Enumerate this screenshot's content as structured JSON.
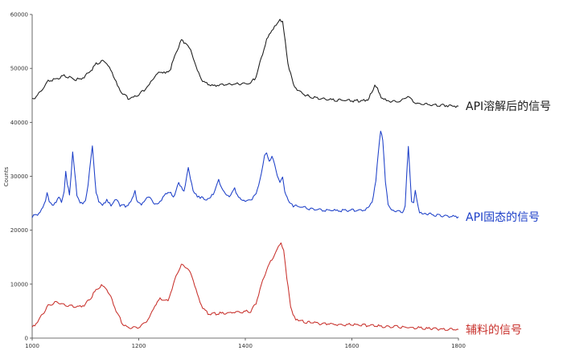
{
  "chart_data": {
    "type": "line",
    "xlabel": "",
    "ylabel": "Counts",
    "xlim": [
      1000,
      1800
    ],
    "ylim": [
      0,
      60000
    ],
    "grid": false,
    "x_ticks": [
      "1000",
      "1200",
      "1400",
      "1600",
      "1800"
    ],
    "y_ticks": [
      "0",
      "10000",
      "20000",
      "30000",
      "40000",
      "50000",
      "60000"
    ],
    "series": [
      {
        "name": "API溶解后的信号",
        "color": "#1a1a1a",
        "points": [
          [
            1000,
            44200
          ],
          [
            1010,
            45000
          ],
          [
            1020,
            46200
          ],
          [
            1030,
            47600
          ],
          [
            1040,
            48000
          ],
          [
            1050,
            48200
          ],
          [
            1060,
            48600
          ],
          [
            1070,
            48400
          ],
          [
            1080,
            48000
          ],
          [
            1090,
            48000
          ],
          [
            1100,
            48600
          ],
          [
            1110,
            49600
          ],
          [
            1120,
            50800
          ],
          [
            1130,
            51400
          ],
          [
            1140,
            51000
          ],
          [
            1150,
            49200
          ],
          [
            1160,
            46800
          ],
          [
            1170,
            45200
          ],
          [
            1180,
            44500
          ],
          [
            1190,
            44600
          ],
          [
            1200,
            45200
          ],
          [
            1210,
            46000
          ],
          [
            1220,
            47000
          ],
          [
            1230,
            48600
          ],
          [
            1240,
            49400
          ],
          [
            1250,
            49000
          ],
          [
            1260,
            50000
          ],
          [
            1270,
            53000
          ],
          [
            1280,
            55200
          ],
          [
            1290,
            54600
          ],
          [
            1300,
            52800
          ],
          [
            1310,
            49600
          ],
          [
            1320,
            47600
          ],
          [
            1330,
            47000
          ],
          [
            1340,
            46800
          ],
          [
            1350,
            46900
          ],
          [
            1360,
            47000
          ],
          [
            1370,
            47000
          ],
          [
            1380,
            47100
          ],
          [
            1390,
            47100
          ],
          [
            1400,
            47100
          ],
          [
            1410,
            47200
          ],
          [
            1420,
            48400
          ],
          [
            1430,
            52000
          ],
          [
            1440,
            55200
          ],
          [
            1450,
            57200
          ],
          [
            1460,
            58200
          ],
          [
            1465,
            59200
          ],
          [
            1470,
            58500
          ],
          [
            1475,
            55000
          ],
          [
            1480,
            51000
          ],
          [
            1490,
            47000
          ],
          [
            1500,
            45800
          ],
          [
            1510,
            45200
          ],
          [
            1520,
            44800
          ],
          [
            1540,
            44400
          ],
          [
            1560,
            44200
          ],
          [
            1580,
            44100
          ],
          [
            1600,
            44000
          ],
          [
            1620,
            44000
          ],
          [
            1630,
            44300
          ],
          [
            1637,
            45400
          ],
          [
            1643,
            47000
          ],
          [
            1648,
            46400
          ],
          [
            1655,
            44700
          ],
          [
            1665,
            44000
          ],
          [
            1680,
            43800
          ],
          [
            1690,
            43900
          ],
          [
            1700,
            44500
          ],
          [
            1705,
            44800
          ],
          [
            1710,
            44400
          ],
          [
            1720,
            43600
          ],
          [
            1740,
            43300
          ],
          [
            1760,
            43200
          ],
          [
            1780,
            43100
          ],
          [
            1800,
            43000
          ]
        ]
      },
      {
        "name": "API固态的信号",
        "color": "#1c3fc8",
        "points": [
          [
            1000,
            22500
          ],
          [
            1010,
            23000
          ],
          [
            1020,
            24200
          ],
          [
            1025,
            25500
          ],
          [
            1028,
            27200
          ],
          [
            1032,
            25500
          ],
          [
            1038,
            24400
          ],
          [
            1045,
            25200
          ],
          [
            1050,
            26000
          ],
          [
            1055,
            25300
          ],
          [
            1060,
            27300
          ],
          [
            1063,
            30800
          ],
          [
            1066,
            28400
          ],
          [
            1070,
            26700
          ],
          [
            1073,
            30300
          ],
          [
            1076,
            34600
          ],
          [
            1080,
            30500
          ],
          [
            1084,
            26500
          ],
          [
            1090,
            25300
          ],
          [
            1095,
            24800
          ],
          [
            1100,
            25500
          ],
          [
            1105,
            28500
          ],
          [
            1110,
            33000
          ],
          [
            1113,
            35500
          ],
          [
            1116,
            32000
          ],
          [
            1120,
            27000
          ],
          [
            1125,
            25200
          ],
          [
            1132,
            24800
          ],
          [
            1140,
            25500
          ],
          [
            1148,
            24700
          ],
          [
            1155,
            25400
          ],
          [
            1160,
            25800
          ],
          [
            1165,
            24600
          ],
          [
            1175,
            24500
          ],
          [
            1185,
            25000
          ],
          [
            1190,
            26500
          ],
          [
            1193,
            27400
          ],
          [
            1196,
            25400
          ],
          [
            1205,
            24700
          ],
          [
            1212,
            25400
          ],
          [
            1218,
            26200
          ],
          [
            1225,
            25400
          ],
          [
            1232,
            24800
          ],
          [
            1240,
            25300
          ],
          [
            1248,
            26500
          ],
          [
            1255,
            26800
          ],
          [
            1260,
            27000
          ],
          [
            1265,
            26200
          ],
          [
            1270,
            27300
          ],
          [
            1275,
            28800
          ],
          [
            1280,
            28100
          ],
          [
            1285,
            27000
          ],
          [
            1290,
            29800
          ],
          [
            1293,
            31800
          ],
          [
            1297,
            29600
          ],
          [
            1302,
            27200
          ],
          [
            1310,
            26300
          ],
          [
            1318,
            26000
          ],
          [
            1325,
            25700
          ],
          [
            1332,
            25800
          ],
          [
            1340,
            26700
          ],
          [
            1346,
            28300
          ],
          [
            1350,
            29300
          ],
          [
            1355,
            28200
          ],
          [
            1362,
            26700
          ],
          [
            1370,
            26300
          ],
          [
            1375,
            27000
          ],
          [
            1380,
            27700
          ],
          [
            1385,
            26600
          ],
          [
            1392,
            25600
          ],
          [
            1400,
            25500
          ],
          [
            1410,
            25600
          ],
          [
            1418,
            26400
          ],
          [
            1425,
            28300
          ],
          [
            1430,
            30500
          ],
          [
            1436,
            33600
          ],
          [
            1440,
            34200
          ],
          [
            1445,
            32800
          ],
          [
            1450,
            33600
          ],
          [
            1455,
            32400
          ],
          [
            1460,
            30100
          ],
          [
            1465,
            28800
          ],
          [
            1470,
            30000
          ],
          [
            1474,
            27200
          ],
          [
            1478,
            26000
          ],
          [
            1483,
            25000
          ],
          [
            1490,
            24500
          ],
          [
            1500,
            24400
          ],
          [
            1510,
            24200
          ],
          [
            1520,
            24000
          ],
          [
            1530,
            23900
          ],
          [
            1540,
            23800
          ],
          [
            1550,
            23700
          ],
          [
            1560,
            23700
          ],
          [
            1570,
            23600
          ],
          [
            1580,
            23600
          ],
          [
            1590,
            23700
          ],
          [
            1600,
            23700
          ],
          [
            1610,
            23700
          ],
          [
            1620,
            23800
          ],
          [
            1630,
            24000
          ],
          [
            1638,
            25300
          ],
          [
            1645,
            29000
          ],
          [
            1650,
            35000
          ],
          [
            1654,
            38600
          ],
          [
            1658,
            36500
          ],
          [
            1663,
            29000
          ],
          [
            1668,
            25000
          ],
          [
            1675,
            23700
          ],
          [
            1685,
            23400
          ],
          [
            1695,
            23400
          ],
          [
            1700,
            24300
          ],
          [
            1703,
            30500
          ],
          [
            1706,
            35400
          ],
          [
            1709,
            30500
          ],
          [
            1712,
            25400
          ],
          [
            1716,
            25000
          ],
          [
            1719,
            27300
          ],
          [
            1722,
            25500
          ],
          [
            1727,
            23300
          ],
          [
            1740,
            23000
          ],
          [
            1760,
            22800
          ],
          [
            1780,
            22600
          ],
          [
            1800,
            22500
          ]
        ]
      },
      {
        "name": "辅料的信号",
        "color": "#c8302b",
        "points": [
          [
            1000,
            2000
          ],
          [
            1010,
            3000
          ],
          [
            1020,
            4500
          ],
          [
            1030,
            6000
          ],
          [
            1040,
            6500
          ],
          [
            1050,
            6600
          ],
          [
            1060,
            6300
          ],
          [
            1070,
            6000
          ],
          [
            1080,
            5800
          ],
          [
            1090,
            5800
          ],
          [
            1100,
            6300
          ],
          [
            1110,
            7500
          ],
          [
            1120,
            9000
          ],
          [
            1130,
            9700
          ],
          [
            1140,
            9200
          ],
          [
            1150,
            7000
          ],
          [
            1160,
            4500
          ],
          [
            1170,
            2600
          ],
          [
            1180,
            2000
          ],
          [
            1190,
            1900
          ],
          [
            1200,
            2100
          ],
          [
            1210,
            2700
          ],
          [
            1220,
            3800
          ],
          [
            1230,
            6000
          ],
          [
            1240,
            7300
          ],
          [
            1250,
            7000
          ],
          [
            1255,
            6900
          ],
          [
            1260,
            8500
          ],
          [
            1270,
            11500
          ],
          [
            1280,
            13500
          ],
          [
            1290,
            13200
          ],
          [
            1300,
            11500
          ],
          [
            1310,
            8000
          ],
          [
            1320,
            5700
          ],
          [
            1330,
            4600
          ],
          [
            1340,
            4500
          ],
          [
            1350,
            4600
          ],
          [
            1360,
            4600
          ],
          [
            1370,
            4700
          ],
          [
            1380,
            4800
          ],
          [
            1390,
            4900
          ],
          [
            1400,
            4900
          ],
          [
            1410,
            5000
          ],
          [
            1420,
            6500
          ],
          [
            1430,
            9800
          ],
          [
            1440,
            12800
          ],
          [
            1450,
            14600
          ],
          [
            1460,
            16400
          ],
          [
            1467,
            17800
          ],
          [
            1472,
            16300
          ],
          [
            1478,
            11000
          ],
          [
            1485,
            6000
          ],
          [
            1492,
            3800
          ],
          [
            1500,
            3200
          ],
          [
            1520,
            2900
          ],
          [
            1540,
            2700
          ],
          [
            1560,
            2600
          ],
          [
            1580,
            2500
          ],
          [
            1600,
            2500
          ],
          [
            1620,
            2400
          ],
          [
            1640,
            2300
          ],
          [
            1660,
            2200
          ],
          [
            1680,
            2100
          ],
          [
            1700,
            2000
          ],
          [
            1720,
            1900
          ],
          [
            1740,
            1800
          ],
          [
            1760,
            1700
          ],
          [
            1780,
            1600
          ],
          [
            1800,
            1600
          ]
        ]
      }
    ]
  }
}
